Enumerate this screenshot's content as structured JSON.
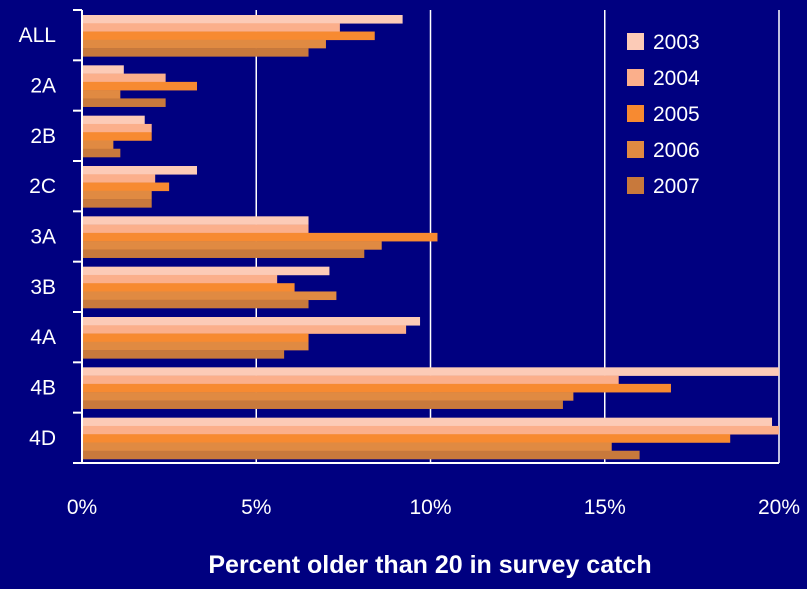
{
  "chart_data": {
    "type": "bar",
    "orientation": "horizontal",
    "xlabel": "Percent older than 20 in survey catch",
    "ylabel": "",
    "xlim": [
      0,
      20
    ],
    "x_ticks": [
      0,
      5,
      10,
      15,
      20
    ],
    "x_tick_labels": [
      "0%",
      "5%",
      "10%",
      "15%",
      "20%"
    ],
    "grid": "vertical",
    "legend_position": "top-right",
    "categories": [
      "ALL",
      "2A",
      "2B",
      "2C",
      "3A",
      "3B",
      "4A",
      "4B",
      "4D"
    ],
    "series": [
      {
        "name": "2003",
        "color": "#FCCBB7",
        "values": [
          9.2,
          1.2,
          1.8,
          3.3,
          6.5,
          7.1,
          9.7,
          20.0,
          19.8
        ]
      },
      {
        "name": "2004",
        "color": "#FBAF8B",
        "values": [
          7.4,
          2.4,
          2.0,
          2.1,
          6.5,
          5.6,
          9.3,
          15.4,
          20.0
        ]
      },
      {
        "name": "2005",
        "color": "#F78A31",
        "values": [
          8.4,
          3.3,
          2.0,
          2.5,
          10.2,
          6.1,
          6.5,
          16.9,
          18.6
        ]
      },
      {
        "name": "2006",
        "color": "#E08A42",
        "values": [
          7.0,
          1.1,
          0.9,
          2.0,
          8.6,
          7.3,
          6.5,
          14.1,
          15.2
        ]
      },
      {
        "name": "2007",
        "color": "#C8793C",
        "values": [
          6.5,
          2.4,
          1.1,
          2.0,
          8.1,
          6.5,
          5.8,
          13.8,
          16.0
        ]
      }
    ]
  }
}
